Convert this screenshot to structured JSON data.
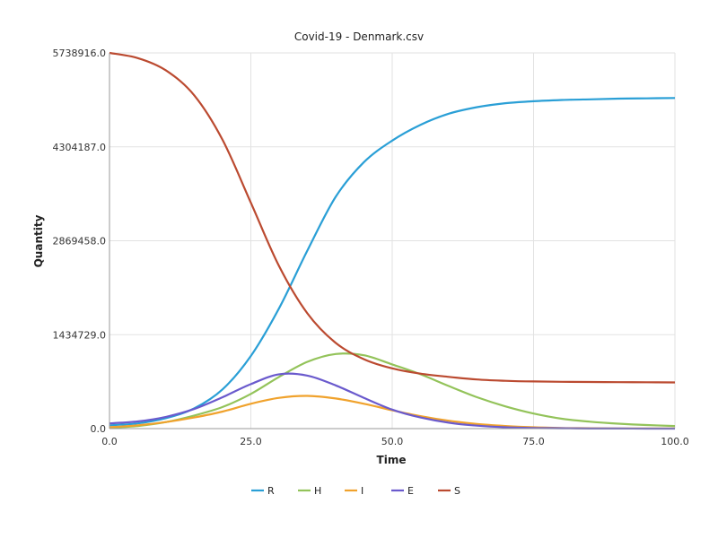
{
  "chart_data": {
    "type": "line",
    "title": "Covid-19 - Denmark.csv",
    "xlabel": "Time",
    "ylabel": "Quantity",
    "xlim": [
      0,
      100
    ],
    "ylim": [
      0,
      5738916
    ],
    "xticks": [
      0,
      25,
      50,
      75,
      100
    ],
    "xtick_labels": [
      "0.0",
      "25.0",
      "50.0",
      "75.0",
      "100.0"
    ],
    "yticks": [
      0,
      1434729,
      2869458,
      4304187,
      5738916
    ],
    "ytick_labels": [
      "0.0",
      "1434729.0",
      "2869458.0",
      "4304187.0",
      "5738916.0"
    ],
    "grid": true,
    "legend_position": "bottom-center",
    "x": [
      0,
      5,
      10,
      15,
      20,
      25,
      30,
      35,
      40,
      45,
      50,
      55,
      60,
      65,
      70,
      75,
      80,
      85,
      90,
      95,
      100
    ],
    "series": [
      {
        "name": "R",
        "color": "#2a9fd6",
        "values": [
          50000,
          80000,
          160000,
          310000,
          600000,
          1110000,
          1840000,
          2720000,
          3540000,
          4070000,
          4400000,
          4640000,
          4810000,
          4910000,
          4970000,
          5000000,
          5020000,
          5030000,
          5040000,
          5045000,
          5050000
        ]
      },
      {
        "name": "H",
        "color": "#93c35a",
        "values": [
          15000,
          40000,
          100000,
          200000,
          330000,
          530000,
          790000,
          1020000,
          1140000,
          1120000,
          980000,
          830000,
          650000,
          480000,
          340000,
          230000,
          150000,
          105000,
          75000,
          55000,
          40000
        ]
      },
      {
        "name": "I",
        "color": "#f0a22c",
        "values": [
          20000,
          50000,
          100000,
          170000,
          260000,
          380000,
          470000,
          500000,
          460000,
          380000,
          280000,
          190000,
          120000,
          70000,
          40000,
          20000,
          10000,
          5000,
          3000,
          2000,
          1000
        ]
      },
      {
        "name": "E",
        "color": "#6a5acd",
        "values": [
          80000,
          110000,
          180000,
          300000,
          480000,
          680000,
          830000,
          810000,
          660000,
          470000,
          290000,
          170000,
          90000,
          45000,
          20000,
          10000,
          5000,
          2000,
          1000,
          500,
          200
        ]
      },
      {
        "name": "S",
        "color": "#bb4a30",
        "values": [
          5738916,
          5660000,
          5470000,
          5090000,
          4410000,
          3450000,
          2480000,
          1760000,
          1310000,
          1060000,
          920000,
          840000,
          790000,
          750000,
          730000,
          720000,
          715000,
          712000,
          710000,
          708000,
          706000
        ]
      }
    ]
  }
}
